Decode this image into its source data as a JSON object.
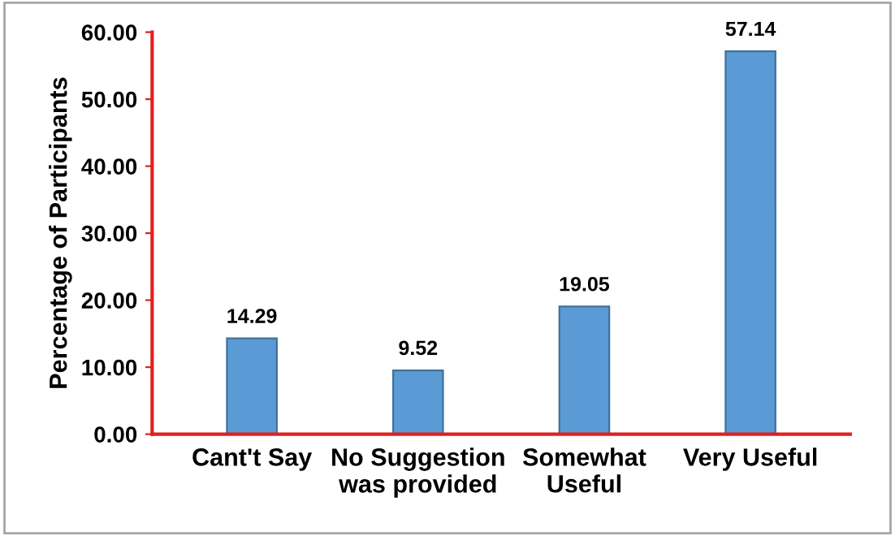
{
  "chart_data": {
    "type": "bar",
    "ylabel": "Percentage of Participants",
    "categories": [
      "Cant't Say",
      "No Suggestion\nwas provided",
      "Somewhat\nUseful",
      "Very Useful"
    ],
    "values": [
      14.29,
      9.52,
      19.05,
      57.14
    ],
    "color": "#5b9bd5",
    "ylim": [
      0,
      60
    ],
    "yticks": [
      {
        "value": 0,
        "label": "0.00"
      },
      {
        "value": 10,
        "label": "10.00"
      },
      {
        "value": 20,
        "label": "20.00"
      },
      {
        "value": 30,
        "label": "30.00"
      },
      {
        "value": 40,
        "label": "40.00"
      },
      {
        "value": 50,
        "label": "50.00"
      },
      {
        "value": 60,
        "label": "60.00"
      }
    ],
    "data_labels": true,
    "grid": false,
    "legend": false
  }
}
